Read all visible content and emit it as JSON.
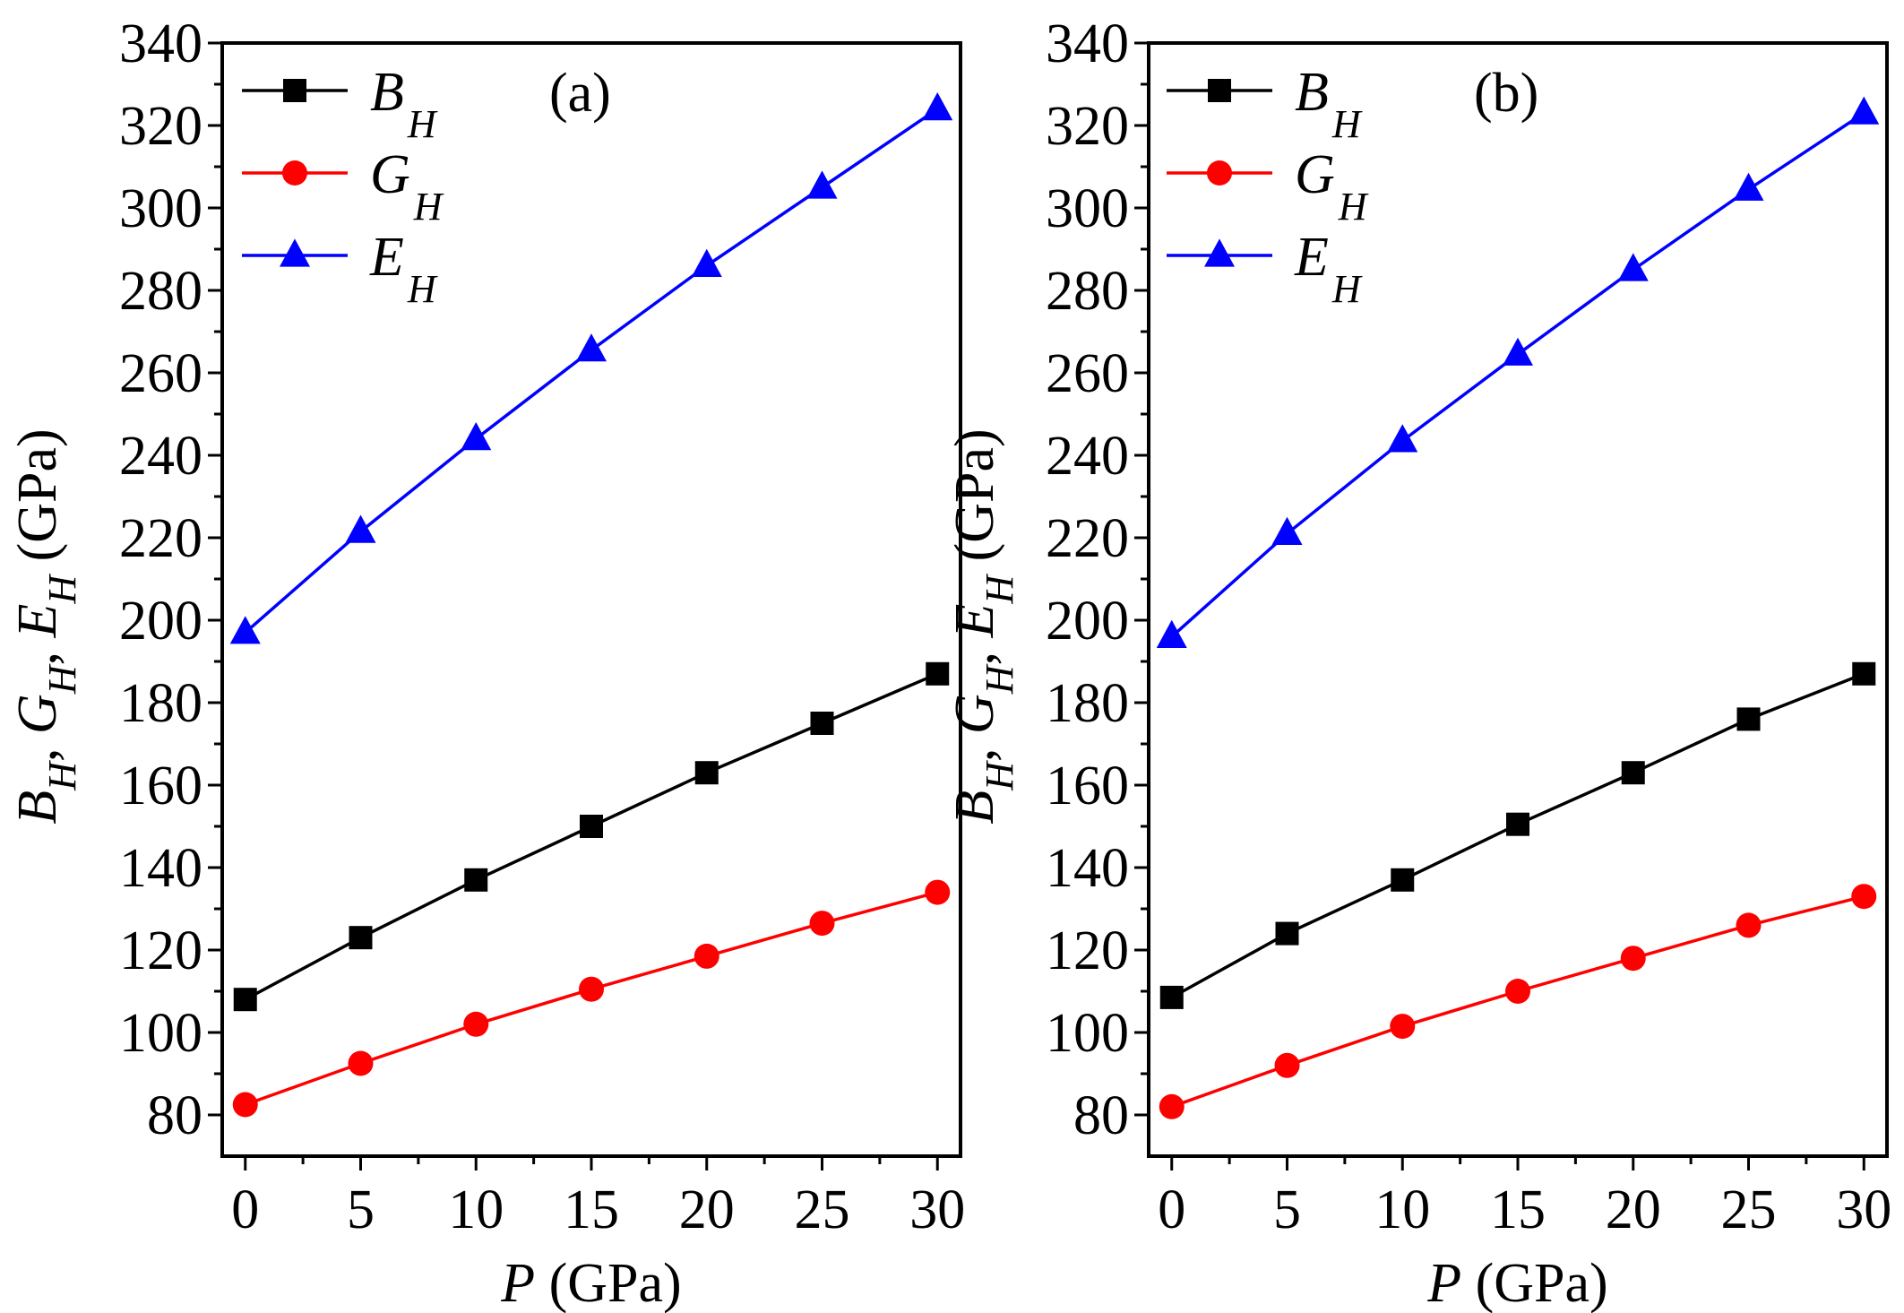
{
  "chart_data": [
    {
      "type": "line",
      "panel_label": "(a)",
      "xlabel": {
        "italic": "P",
        "rest": " (GPa)"
      },
      "ylabel": [
        {
          "main": "B",
          "sub": "H",
          "sep": ", "
        },
        {
          "main": "G",
          "sub": "H",
          "sep": ", "
        },
        {
          "main": "E",
          "sub": "H",
          "sep": " "
        },
        {
          "main": "(GPa)",
          "sub": "",
          "sep": ""
        }
      ],
      "xlim": [
        -1,
        31
      ],
      "ylim": [
        70,
        340
      ],
      "xticks": [
        0,
        5,
        10,
        15,
        20,
        25,
        30
      ],
      "yticks": [
        80,
        100,
        120,
        140,
        160,
        180,
        200,
        220,
        240,
        260,
        280,
        300,
        320,
        340
      ],
      "x": [
        0,
        5,
        10,
        15,
        20,
        25,
        30
      ],
      "legend_position": "top-left",
      "series": [
        {
          "name": "B",
          "sub": "H",
          "color": "#000000",
          "marker": "square",
          "values": [
            108,
            123,
            137,
            150,
            163,
            175,
            187
          ]
        },
        {
          "name": "G",
          "sub": "H",
          "color": "#ff0000",
          "marker": "circle",
          "values": [
            82.5,
            92.5,
            102,
            110.5,
            118.5,
            126.5,
            134
          ]
        },
        {
          "name": "E",
          "sub": "H",
          "color": "#0000ff",
          "marker": "triangle",
          "values": [
            197,
            221.5,
            244,
            265.5,
            286,
            305,
            324
          ]
        }
      ]
    },
    {
      "type": "line",
      "panel_label": "(b)",
      "xlabel": {
        "italic": "P",
        "rest": " (GPa)"
      },
      "ylabel": [
        {
          "main": "B",
          "sub": "H",
          "sep": ", "
        },
        {
          "main": "G",
          "sub": "H",
          "sep": ", "
        },
        {
          "main": "E",
          "sub": "H",
          "sep": " "
        },
        {
          "main": "(GPa)",
          "sub": "",
          "sep": ""
        }
      ],
      "xlim": [
        -1,
        31
      ],
      "ylim": [
        70,
        340
      ],
      "xticks": [
        0,
        5,
        10,
        15,
        20,
        25,
        30
      ],
      "yticks": [
        80,
        100,
        120,
        140,
        160,
        180,
        200,
        220,
        240,
        260,
        280,
        300,
        320,
        340
      ],
      "x": [
        0,
        5,
        10,
        15,
        20,
        25,
        30
      ],
      "legend_position": "top-left",
      "series": [
        {
          "name": "B",
          "sub": "H",
          "color": "#000000",
          "marker": "square",
          "values": [
            108.5,
            124,
            137,
            150.5,
            163,
            176,
            187
          ]
        },
        {
          "name": "G",
          "sub": "H",
          "color": "#ff0000",
          "marker": "circle",
          "values": [
            82,
            92,
            101.5,
            110,
            118,
            126,
            133
          ]
        },
        {
          "name": "E",
          "sub": "H",
          "color": "#0000ff",
          "marker": "triangle",
          "values": [
            196,
            221,
            243.5,
            264.5,
            285,
            304.5,
            323
          ]
        }
      ]
    }
  ]
}
